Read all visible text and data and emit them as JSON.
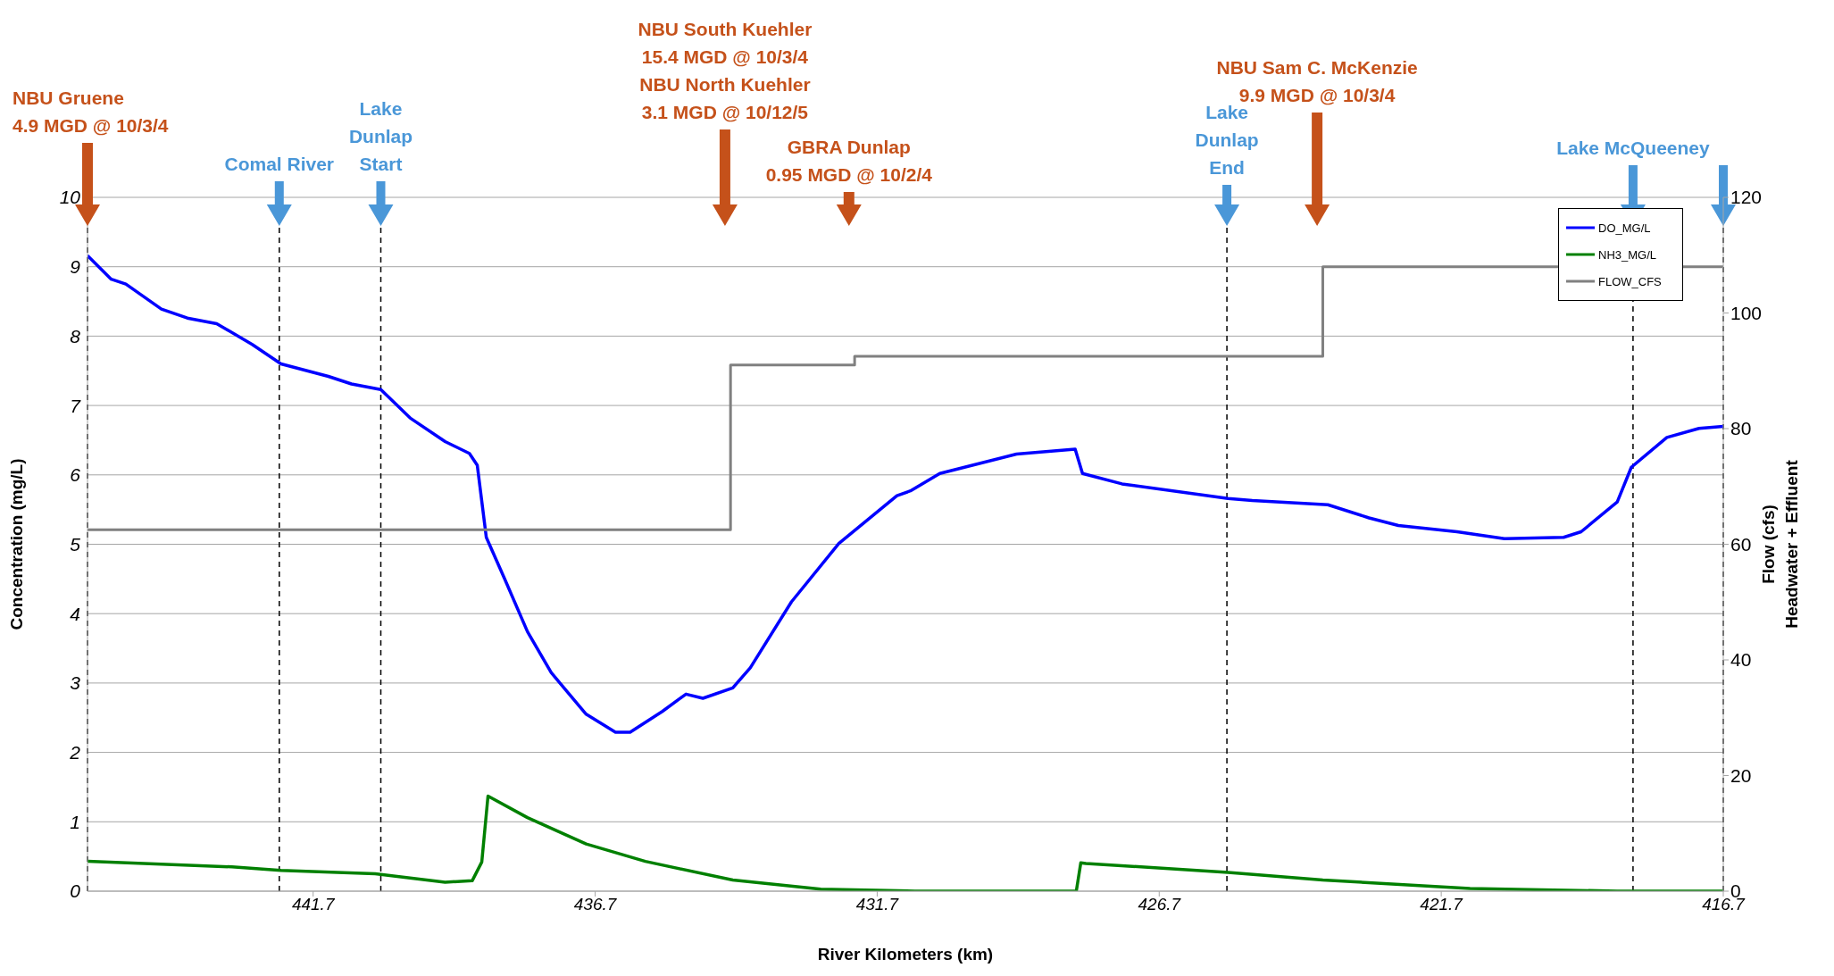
{
  "chart_data": {
    "type": "line",
    "xlabel": "River Kilometers (km)",
    "ylabel": "Concentration (mg/L)",
    "y2label": "Flow (cfs)\nHeadwater + Effluent",
    "xlim": [
      445.7,
      416.7
    ],
    "xticks": [
      441.7,
      436.7,
      431.7,
      426.7,
      421.7,
      416.7
    ],
    "ylim": [
      0,
      10
    ],
    "yticks": [
      0,
      1,
      2,
      3,
      4,
      5,
      6,
      7,
      8,
      9,
      10
    ],
    "y2lim": [
      0,
      120
    ],
    "y2ticks": [
      0,
      20,
      40,
      60,
      80,
      100,
      120
    ],
    "grid": "y",
    "legend": "top right",
    "marker": "none",
    "line_style": "solid",
    "series": [
      {
        "name": "DO_MG/L",
        "color": "#0000ff",
        "x": [
          445.7,
          445.28,
          445.02,
          444.39,
          443.93,
          443.41,
          442.78,
          442.27,
          441.43,
          441.02,
          440.5,
          439.98,
          439.36,
          438.93,
          438.79,
          438.63,
          438.31,
          437.9,
          437.48,
          436.86,
          436.34,
          436.08,
          435.51,
          435.09,
          434.79,
          434.26,
          433.95,
          433.22,
          432.38,
          431.35,
          431.11,
          430.59,
          429.23,
          428.19,
          428.06,
          427.36,
          425.48,
          425.05,
          423.71,
          422.98,
          422.46,
          421.42,
          420.58,
          419.53,
          419.22,
          418.58,
          418.33,
          417.7,
          417.13,
          416.7
        ],
        "values": [
          9.16,
          8.82,
          8.75,
          8.39,
          8.26,
          8.18,
          7.88,
          7.6,
          7.42,
          7.31,
          7.23,
          6.82,
          6.48,
          6.31,
          6.14,
          5.1,
          4.51,
          3.74,
          3.15,
          2.55,
          2.29,
          2.29,
          2.59,
          2.84,
          2.78,
          2.93,
          3.22,
          4.17,
          5.01,
          5.7,
          5.77,
          6.02,
          6.3,
          6.37,
          6.02,
          5.87,
          5.66,
          5.63,
          5.57,
          5.38,
          5.27,
          5.18,
          5.08,
          5.1,
          5.18,
          5.61,
          6.11,
          6.54,
          6.67,
          6.7
        ]
      },
      {
        "name": "NH3_MG/L",
        "color": "#008000",
        "x": [
          445.7,
          443.14,
          442.27,
          440.6,
          439.36,
          438.88,
          438.71,
          438.6,
          437.9,
          436.86,
          435.81,
          434.26,
          432.7,
          431.03,
          428.17,
          428.09,
          428.0,
          425.48,
          423.8,
          421.19,
          418.58,
          416.7
        ],
        "values": [
          0.43,
          0.35,
          0.3,
          0.25,
          0.13,
          0.15,
          0.42,
          1.37,
          1.06,
          0.68,
          0.43,
          0.16,
          0.03,
          0,
          0,
          0.41,
          0.4,
          0.27,
          0.16,
          0.04,
          0,
          0
        ]
      },
      {
        "name": "FLOW_CFS",
        "color": "#808080",
        "type": "step",
        "axis": "y2",
        "x": [
          445.7,
          434.3,
          432.1,
          423.8,
          416.7
        ],
        "values": [
          62.5,
          91,
          92.5,
          108,
          108
        ]
      }
    ],
    "ref_lines": [
      {
        "axis": "x",
        "value": 442.3,
        "label": "Comal River",
        "color": "#000000",
        "line_style": "dashed"
      },
      {
        "axis": "x",
        "value": 440.5,
        "label": "Lake\nDunlap\nStart",
        "color": "#000000",
        "line_style": "dashed"
      },
      {
        "axis": "x",
        "value": 425.5,
        "label": "Lake\nDunlap\nEnd",
        "color": "#000000",
        "line_style": "dashed"
      },
      {
        "axis": "x",
        "value": 418.3,
        "label": "Lake McQueeney",
        "color": "#000000",
        "line_style": "dashed"
      },
      {
        "axis": "x",
        "value": 416.7,
        "color": "#000000",
        "line_style": "dashed"
      },
      {
        "axis": "x",
        "value": 445.7,
        "color": "#000000",
        "line_style": "dashed"
      }
    ],
    "annotations": [
      "NBU Gruene\n4.9 MGD @ 10/3/4",
      "NBU South Kuehler\n15.4 MGD @ 10/3/4\nNBU North Kuehler\n3.1 MGD @ 10/12/5",
      "GBRA Dunlap\n0.95 MGD @ 10/2/4",
      "NBU Sam C. McKenzie\n9.9 MGD @ 10/3/4"
    ]
  }
}
